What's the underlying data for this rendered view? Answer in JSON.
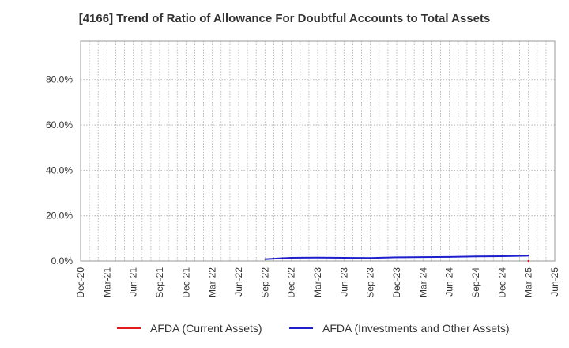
{
  "chart_data": {
    "type": "line",
    "title": "[4166]  Trend of Ratio of Allowance For Doubtful Accounts to Total Assets",
    "xlabel": "",
    "ylabel": "",
    "x_ticks": [
      "Dec-20",
      "Mar-21",
      "Jun-21",
      "Sep-21",
      "Dec-21",
      "Mar-22",
      "Jun-22",
      "Sep-22",
      "Dec-22",
      "Mar-23",
      "Jun-23",
      "Sep-23",
      "Dec-23",
      "Mar-24",
      "Jun-24",
      "Sep-24",
      "Dec-24",
      "Mar-25",
      "Jun-25"
    ],
    "xlim": [
      "2020-12",
      "2025-06"
    ],
    "y_ticks": [
      "0.0%",
      "20.0%",
      "40.0%",
      "60.0%",
      "80.0%"
    ],
    "y_tick_values": [
      0,
      20,
      40,
      60,
      80
    ],
    "ylim": [
      0,
      97
    ],
    "grid": true,
    "legend_position": "bottom",
    "series": [
      {
        "name": "AFDA (Current Assets)",
        "color": "#e31a1c",
        "points": [
          [
            "2025-03",
            0.0
          ]
        ]
      },
      {
        "name": "AFDA (Investments and Other Assets)",
        "color": "#1f1fcc",
        "points": [
          [
            "2022-09",
            0.8
          ],
          [
            "2022-10",
            1.0
          ],
          [
            "2022-11",
            1.2
          ],
          [
            "2022-12",
            1.4
          ],
          [
            "2023-03",
            1.5
          ],
          [
            "2023-06",
            1.4
          ],
          [
            "2023-09",
            1.3
          ],
          [
            "2023-12",
            1.6
          ],
          [
            "2024-03",
            1.7
          ],
          [
            "2024-06",
            1.8
          ],
          [
            "2024-09",
            2.0
          ],
          [
            "2024-12",
            2.1
          ],
          [
            "2025-03",
            2.3
          ]
        ]
      }
    ]
  }
}
